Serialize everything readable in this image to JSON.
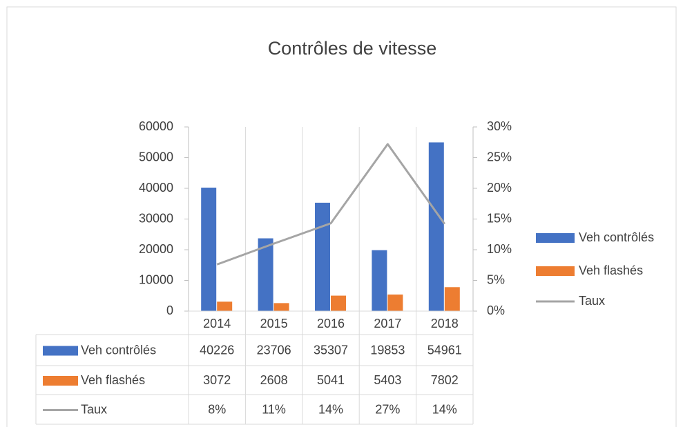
{
  "chart_data": {
    "type": "bar",
    "title": "Contrôles de vitesse",
    "categories": [
      "2014",
      "2015",
      "2016",
      "2017",
      "2018"
    ],
    "series": [
      {
        "name": "Veh contrôlés",
        "color": "#4472c4",
        "type": "bar",
        "values": [
          40226,
          23706,
          35307,
          19853,
          54961
        ]
      },
      {
        "name": "Veh flashés",
        "color": "#ed7d31",
        "type": "bar",
        "values": [
          3072,
          2608,
          5041,
          5403,
          7802
        ]
      },
      {
        "name": "Taux",
        "color": "#a5a5a5",
        "type": "line",
        "axis": "y2",
        "values": [
          7.6,
          11,
          14.3,
          27.2,
          14.2
        ],
        "value_labels": [
          "8%",
          "11%",
          "14%",
          "27%",
          "14%"
        ]
      }
    ],
    "ylim": [
      0,
      60000
    ],
    "yticks": [
      0,
      10000,
      20000,
      30000,
      40000,
      50000,
      60000
    ],
    "y2lim": [
      0,
      30
    ],
    "y2ticks": [
      {
        "value": 0,
        "label": "0%"
      },
      {
        "value": 5,
        "label": "5%"
      },
      {
        "value": 10,
        "label": "10%"
      },
      {
        "value": 15,
        "label": "15%"
      },
      {
        "value": 20,
        "label": "20%"
      },
      {
        "value": 25,
        "label": "25%"
      },
      {
        "value": 30,
        "label": "30%"
      }
    ],
    "legend": "right",
    "data_table": true
  }
}
